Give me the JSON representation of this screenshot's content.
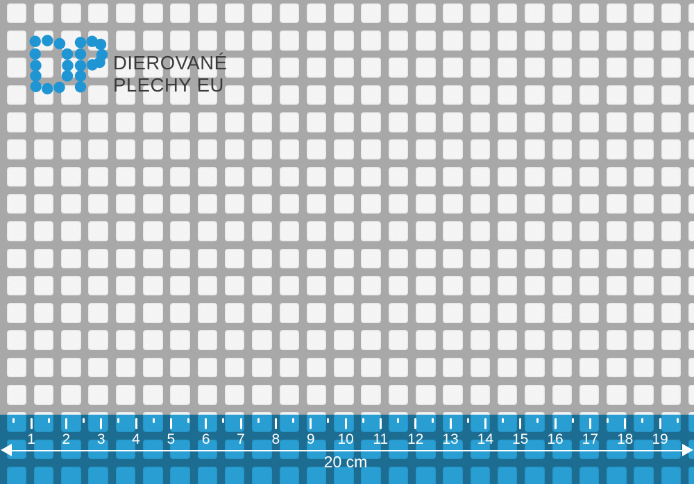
{
  "brand": {
    "line1": "DIEROVANÉ",
    "line2": "PLECHY EU",
    "logo_dot_color": "#2095d3",
    "text_color": "#3a3a3a",
    "logo_dots": [
      [
        50.7,
        59.7
      ],
      [
        68.3,
        58.5
      ],
      [
        86,
        63
      ],
      [
        50.7,
        78
      ],
      [
        97,
        78
      ],
      [
        51.5,
        94.5
      ],
      [
        97.5,
        94.5
      ],
      [
        51.5,
        109.5
      ],
      [
        97,
        109.5
      ],
      [
        51.7,
        124.7
      ],
      [
        68.3,
        128
      ],
      [
        85.5,
        126
      ],
      [
        116,
        61.3
      ],
      [
        116,
        78
      ],
      [
        116,
        94.7
      ],
      [
        116,
        109.7
      ],
      [
        116,
        125.3
      ],
      [
        132.7,
        59.7
      ],
      [
        145,
        64
      ],
      [
        147,
        79
      ],
      [
        143.5,
        90
      ],
      [
        133,
        93.5
      ]
    ],
    "dot_radius": 8.2
  },
  "ruler": {
    "cm_labels": [
      "1",
      "2",
      "3",
      "4",
      "5",
      "6",
      "7",
      "8",
      "9",
      "10",
      "11",
      "12",
      "13",
      "14",
      "15",
      "16",
      "17",
      "18",
      "19"
    ],
    "total_label": "20 cm",
    "overlay_color": "#2aa5dc",
    "marking_color": "#ffffff"
  },
  "material": {
    "bar_color": "#a9a9a9",
    "hole_color": "#fdfdfd"
  }
}
